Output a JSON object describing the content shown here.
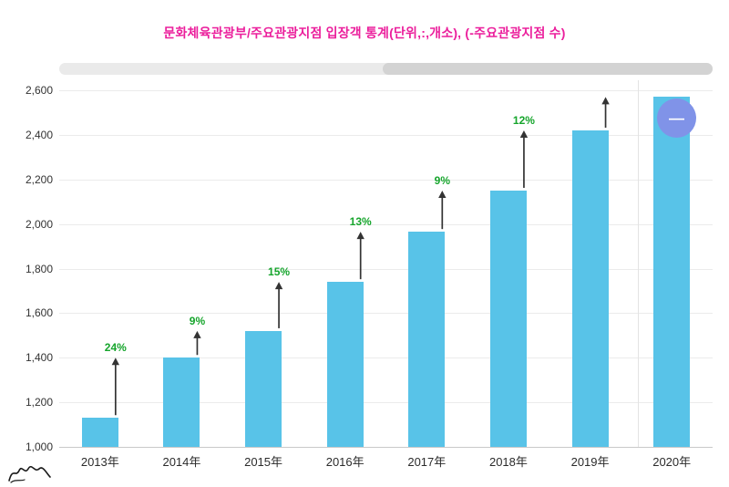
{
  "title": "문화체육관광부/주요관광지점 입장객 통계(단위,:,개소), (-주요관광지점 수)",
  "float_button": {
    "label": "—"
  },
  "colors": {
    "title": "#EB1F9C",
    "bar": "#58C3E8",
    "growth_label": "#16A52C",
    "arrow": "#333333",
    "float_button": "#8093E8"
  },
  "chart_data": {
    "type": "bar",
    "title": "문화체육관광부/주요관광지점 입장객 통계(단위,:,개소), (-주요관광지점 수)",
    "categories": [
      "2013年",
      "2014年",
      "2015年",
      "2016年",
      "2017年",
      "2018年",
      "2019年",
      "2020年"
    ],
    "values": [
      1130,
      1400,
      1520,
      1740,
      1965,
      2150,
      2420,
      2570
    ],
    "growth_labels": [
      "24%",
      "9%",
      "15%",
      "13%",
      "9%",
      "12%",
      ""
    ],
    "xlabel": "",
    "ylabel": "",
    "ylim": [
      1000,
      2600
    ],
    "ytick_step": 200,
    "ytick_labels": [
      "1,000",
      "1,200",
      "1,400",
      "1,600",
      "1,800",
      "2,000",
      "2,200",
      "2,400",
      "2,600"
    ],
    "grid": true,
    "legend": "none"
  }
}
